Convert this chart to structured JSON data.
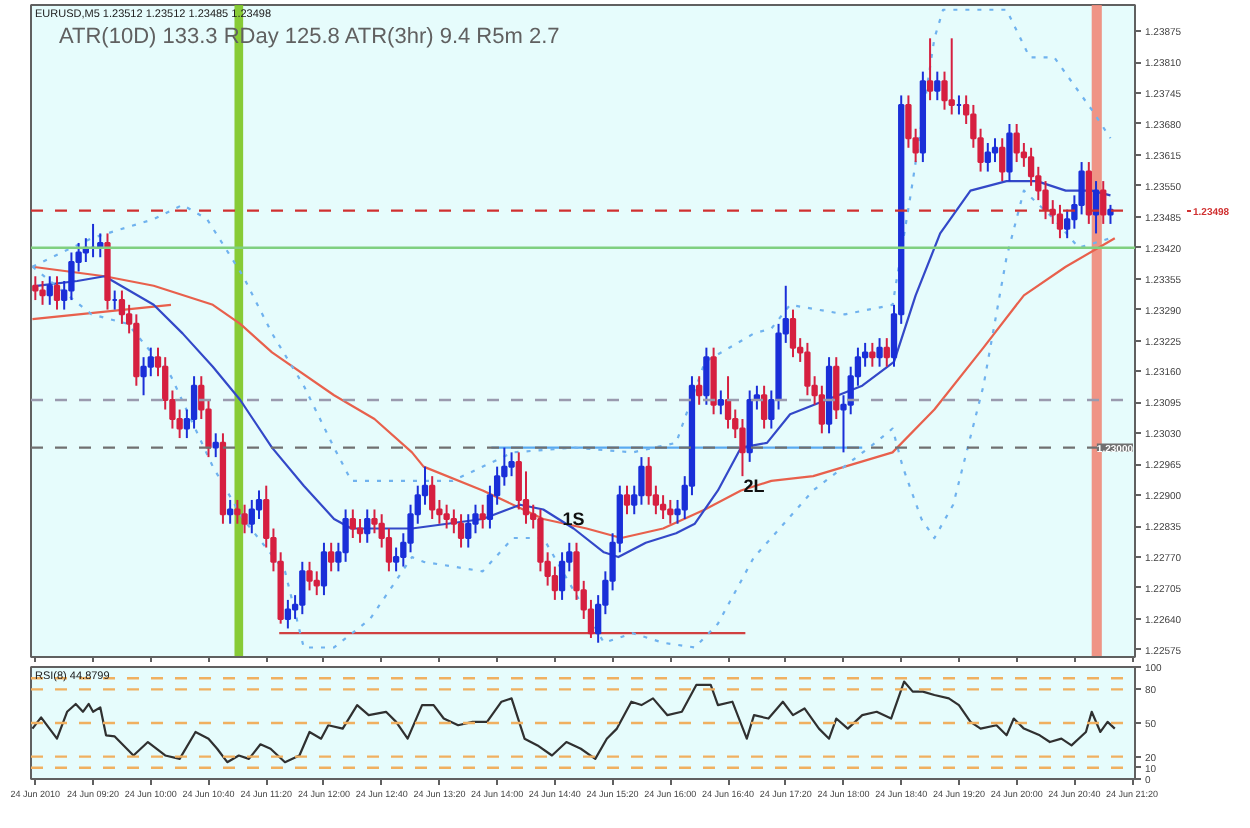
{
  "chart_data": [
    {
      "type": "candlestick",
      "title": "EURUSD,M5 1.23512 1.23512 1.23485 1.23498",
      "annotations": [
        "ATR(10D)  133.3   RDay  125.8   ATR(3hr)   9.4   R5m   2.7",
        {
          "text": "1S",
          "x": "2010-06-24T14:53",
          "y": 1.2285
        },
        {
          "text": "2L",
          "x": "2010-06-24T16:58",
          "y": 1.2292
        }
      ],
      "x": [
        "2010-06-24T08:40",
        "2010-06-24T08:45",
        "2010-06-24T08:50",
        "2010-06-24T08:55",
        "2010-06-24T09:00",
        "2010-06-24T09:05",
        "2010-06-24T09:10",
        "2010-06-24T09:15",
        "2010-06-24T09:20",
        "2010-06-24T09:25",
        "2010-06-24T09:30",
        "2010-06-24T09:35",
        "2010-06-24T09:40",
        "2010-06-24T09:45",
        "2010-06-24T09:50",
        "2010-06-24T09:55",
        "2010-06-24T10:00",
        "2010-06-24T10:05",
        "2010-06-24T10:10",
        "2010-06-24T10:15",
        "2010-06-24T10:20",
        "2010-06-24T10:25",
        "2010-06-24T10:30",
        "2010-06-24T10:35",
        "2010-06-24T10:40",
        "2010-06-24T10:45",
        "2010-06-24T10:50",
        "2010-06-24T10:55",
        "2010-06-24T11:00",
        "2010-06-24T11:05",
        "2010-06-24T11:10",
        "2010-06-24T11:15",
        "2010-06-24T11:20",
        "2010-06-24T11:25",
        "2010-06-24T11:30",
        "2010-06-24T11:35",
        "2010-06-24T11:40",
        "2010-06-24T11:45",
        "2010-06-24T11:50",
        "2010-06-24T11:55",
        "2010-06-24T12:00",
        "2010-06-24T12:05",
        "2010-06-24T12:10",
        "2010-06-24T12:15",
        "2010-06-24T12:20",
        "2010-06-24T12:25",
        "2010-06-24T12:30",
        "2010-06-24T12:35",
        "2010-06-24T12:40",
        "2010-06-24T12:45",
        "2010-06-24T12:50",
        "2010-06-24T12:55",
        "2010-06-24T13:00",
        "2010-06-24T13:05",
        "2010-06-24T13:10",
        "2010-06-24T13:15",
        "2010-06-24T13:20",
        "2010-06-24T13:25",
        "2010-06-24T13:30",
        "2010-06-24T13:35",
        "2010-06-24T13:40",
        "2010-06-24T13:45",
        "2010-06-24T13:50",
        "2010-06-24T13:55",
        "2010-06-24T14:00",
        "2010-06-24T14:05",
        "2010-06-24T14:10",
        "2010-06-24T14:15",
        "2010-06-24T14:20",
        "2010-06-24T14:25",
        "2010-06-24T14:30",
        "2010-06-24T14:35",
        "2010-06-24T14:40",
        "2010-06-24T14:45",
        "2010-06-24T14:50",
        "2010-06-24T14:55",
        "2010-06-24T15:00",
        "2010-06-24T15:05",
        "2010-06-24T15:10",
        "2010-06-24T15:15",
        "2010-06-24T15:20",
        "2010-06-24T15:25",
        "2010-06-24T15:30",
        "2010-06-24T15:35",
        "2010-06-24T15:40",
        "2010-06-24T15:45",
        "2010-06-24T15:50",
        "2010-06-24T15:55",
        "2010-06-24T16:00",
        "2010-06-24T16:05",
        "2010-06-24T16:10",
        "2010-06-24T16:15",
        "2010-06-24T16:20",
        "2010-06-24T16:25",
        "2010-06-24T16:30",
        "2010-06-24T16:35",
        "2010-06-24T16:40",
        "2010-06-24T16:45",
        "2010-06-24T16:50",
        "2010-06-24T16:55",
        "2010-06-24T17:00",
        "2010-06-24T17:05",
        "2010-06-24T17:10",
        "2010-06-24T17:15",
        "2010-06-24T17:20",
        "2010-06-24T17:25",
        "2010-06-24T17:30",
        "2010-06-24T17:35",
        "2010-06-24T17:40",
        "2010-06-24T17:45",
        "2010-06-24T17:50",
        "2010-06-24T17:55",
        "2010-06-24T18:00",
        "2010-06-24T18:05",
        "2010-06-24T18:10",
        "2010-06-24T18:15",
        "2010-06-24T18:20",
        "2010-06-24T18:25",
        "2010-06-24T18:30",
        "2010-06-24T18:35",
        "2010-06-24T18:40",
        "2010-06-24T18:45",
        "2010-06-24T18:50",
        "2010-06-24T18:55",
        "2010-06-24T19:00",
        "2010-06-24T19:05",
        "2010-06-24T19:10",
        "2010-06-24T19:15",
        "2010-06-24T19:20",
        "2010-06-24T19:25",
        "2010-06-24T19:30",
        "2010-06-24T19:35",
        "2010-06-24T19:40",
        "2010-06-24T19:45",
        "2010-06-24T19:50",
        "2010-06-24T19:55",
        "2010-06-24T20:00",
        "2010-06-24T20:05",
        "2010-06-24T20:10",
        "2010-06-24T20:15",
        "2010-06-24T20:20",
        "2010-06-24T20:25",
        "2010-06-24T20:30",
        "2010-06-24T20:35",
        "2010-06-24T20:40",
        "2010-06-24T20:45",
        "2010-06-24T20:50",
        "2010-06-24T20:55",
        "2010-06-24T21:00",
        "2010-06-24T21:05"
      ],
      "ohlc": [
        [
          1.2334,
          1.2336,
          1.2331,
          1.2333
        ],
        [
          1.2333,
          1.2335,
          1.233,
          1.2332
        ],
        [
          1.2332,
          1.2336,
          1.233,
          1.2334
        ],
        [
          1.2334,
          1.2336,
          1.2329,
          1.2331
        ],
        [
          1.2331,
          1.2335,
          1.2329,
          1.2333
        ],
        [
          1.2333,
          1.2341,
          1.2331,
          1.2339
        ],
        [
          1.2339,
          1.2343,
          1.2337,
          1.2341
        ],
        [
          1.2341,
          1.2344,
          1.2339,
          1.2342
        ],
        [
          1.2342,
          1.2347,
          1.234,
          1.2342
        ],
        [
          1.2342,
          1.2345,
          1.234,
          1.2343
        ],
        [
          1.2343,
          1.2345,
          1.2329,
          1.2331
        ],
        [
          1.2331,
          1.2333,
          1.2329,
          1.2331
        ],
        [
          1.2331,
          1.2333,
          1.2326,
          1.2328
        ],
        [
          1.2328,
          1.233,
          1.2324,
          1.2326
        ],
        [
          1.2326,
          1.2328,
          1.2313,
          1.2315
        ],
        [
          1.2315,
          1.2319,
          1.2311,
          1.2317
        ],
        [
          1.2317,
          1.2321,
          1.2315,
          1.2319
        ],
        [
          1.2319,
          1.2321,
          1.2315,
          1.2317
        ],
        [
          1.2317,
          1.2319,
          1.2308,
          1.231
        ],
        [
          1.231,
          1.2312,
          1.2304,
          1.2306
        ],
        [
          1.2306,
          1.2308,
          1.2302,
          1.2304
        ],
        [
          1.2304,
          1.2308,
          1.2302,
          1.2306
        ],
        [
          1.2306,
          1.2315,
          1.2304,
          1.2313
        ],
        [
          1.2313,
          1.2315,
          1.2306,
          1.2308
        ],
        [
          1.2308,
          1.231,
          1.2298,
          1.23
        ],
        [
          1.23,
          1.2303,
          1.2298,
          1.2301
        ],
        [
          1.2301,
          1.2303,
          1.2284,
          1.2286
        ],
        [
          1.2286,
          1.2289,
          1.2284,
          1.2287
        ],
        [
          1.2287,
          1.2289,
          1.2284,
          1.2286
        ],
        [
          1.2286,
          1.2288,
          1.2282,
          1.2284
        ],
        [
          1.2284,
          1.2289,
          1.2282,
          1.2287
        ],
        [
          1.2287,
          1.2291,
          1.2285,
          1.2289
        ],
        [
          1.2289,
          1.2292,
          1.2279,
          1.2281
        ],
        [
          1.2281,
          1.2283,
          1.2274,
          1.2276
        ],
        [
          1.2276,
          1.2278,
          1.2263,
          1.2264
        ],
        [
          1.2264,
          1.2268,
          1.2262,
          1.2266
        ],
        [
          1.2266,
          1.2269,
          1.2264,
          1.2267
        ],
        [
          1.2267,
          1.2276,
          1.2265,
          1.2274
        ],
        [
          1.2274,
          1.2276,
          1.227,
          1.2272
        ],
        [
          1.2272,
          1.2274,
          1.2269,
          1.2271
        ],
        [
          1.2271,
          1.228,
          1.2269,
          1.2278
        ],
        [
          1.2278,
          1.228,
          1.2274,
          1.2276
        ],
        [
          1.2276,
          1.228,
          1.2274,
          1.2278
        ],
        [
          1.2278,
          1.2287,
          1.2276,
          1.2285
        ],
        [
          1.2285,
          1.2287,
          1.2281,
          1.2283
        ],
        [
          1.2283,
          1.2285,
          1.228,
          1.2282
        ],
        [
          1.2282,
          1.2287,
          1.228,
          1.2285
        ],
        [
          1.2285,
          1.2287,
          1.2282,
          1.2284
        ],
        [
          1.2284,
          1.2286,
          1.2279,
          1.2281
        ],
        [
          1.2281,
          1.2283,
          1.2274,
          1.2276
        ],
        [
          1.2276,
          1.2279,
          1.2274,
          1.2277
        ],
        [
          1.2277,
          1.2282,
          1.2275,
          1.228
        ],
        [
          1.228,
          1.2288,
          1.2278,
          1.2286
        ],
        [
          1.2286,
          1.2292,
          1.2284,
          1.229
        ],
        [
          1.229,
          1.2296,
          1.2288,
          1.2292
        ],
        [
          1.2292,
          1.2294,
          1.2285,
          1.2287
        ],
        [
          1.2287,
          1.2289,
          1.2284,
          1.2286
        ],
        [
          1.2286,
          1.2288,
          1.2283,
          1.2285
        ],
        [
          1.2285,
          1.2287,
          1.2282,
          1.2284
        ],
        [
          1.2284,
          1.2286,
          1.2279,
          1.2281
        ],
        [
          1.2281,
          1.2286,
          1.2279,
          1.2284
        ],
        [
          1.2284,
          1.2288,
          1.2282,
          1.2286
        ],
        [
          1.2286,
          1.2288,
          1.2283,
          1.2285
        ],
        [
          1.2285,
          1.2292,
          1.2283,
          1.229
        ],
        [
          1.229,
          1.2296,
          1.2288,
          1.2294
        ],
        [
          1.2294,
          1.23,
          1.2292,
          1.2296
        ],
        [
          1.2296,
          1.2299,
          1.2294,
          1.2297
        ],
        [
          1.2297,
          1.2299,
          1.2287,
          1.2289
        ],
        [
          1.2289,
          1.2295,
          1.2284,
          1.2286
        ],
        [
          1.2286,
          1.2288,
          1.2283,
          1.2285
        ],
        [
          1.2285,
          1.2287,
          1.2274,
          1.2276
        ],
        [
          1.2276,
          1.2278,
          1.2271,
          1.2273
        ],
        [
          1.2273,
          1.2275,
          1.2268,
          1.227
        ],
        [
          1.227,
          1.2278,
          1.2268,
          1.2276
        ],
        [
          1.2276,
          1.228,
          1.2274,
          1.2278
        ],
        [
          1.2278,
          1.228,
          1.2268,
          1.227
        ],
        [
          1.227,
          1.2272,
          1.2264,
          1.2266
        ],
        [
          1.2266,
          1.2268,
          1.226,
          1.2261
        ],
        [
          1.2261,
          1.2269,
          1.2259,
          1.2267
        ],
        [
          1.2267,
          1.2274,
          1.2265,
          1.2272
        ],
        [
          1.2272,
          1.2282,
          1.227,
          1.228
        ],
        [
          1.228,
          1.2292,
          1.2278,
          1.229
        ],
        [
          1.229,
          1.2292,
          1.2286,
          1.2288
        ],
        [
          1.2288,
          1.2292,
          1.2286,
          1.229
        ],
        [
          1.229,
          1.2298,
          1.2288,
          1.2296
        ],
        [
          1.2296,
          1.2298,
          1.2288,
          1.229
        ],
        [
          1.229,
          1.2292,
          1.2286,
          1.2288
        ],
        [
          1.2288,
          1.229,
          1.2285,
          1.2287
        ],
        [
          1.2287,
          1.2289,
          1.2284,
          1.2286
        ],
        [
          1.2286,
          1.2289,
          1.2284,
          1.2287
        ],
        [
          1.2287,
          1.2294,
          1.2285,
          1.2292
        ],
        [
          1.2292,
          1.2315,
          1.229,
          1.2313
        ],
        [
          1.2313,
          1.2315,
          1.2309,
          1.2311
        ],
        [
          1.2311,
          1.2321,
          1.2309,
          1.2319
        ],
        [
          1.2319,
          1.2321,
          1.2307,
          1.2309
        ],
        [
          1.2309,
          1.2312,
          1.2307,
          1.231
        ],
        [
          1.231,
          1.2315,
          1.2304,
          1.2306
        ],
        [
          1.2306,
          1.2308,
          1.2302,
          1.2304
        ],
        [
          1.2304,
          1.2306,
          1.2294,
          1.2299
        ],
        [
          1.2299,
          1.2312,
          1.2297,
          1.231
        ],
        [
          1.231,
          1.2313,
          1.2308,
          1.2311
        ],
        [
          1.2311,
          1.2313,
          1.2304,
          1.2306
        ],
        [
          1.2306,
          1.2312,
          1.2304,
          1.231
        ],
        [
          1.231,
          1.2326,
          1.2308,
          1.2324
        ],
        [
          1.2324,
          1.2334,
          1.2322,
          1.2327
        ],
        [
          1.2327,
          1.2329,
          1.2319,
          1.2321
        ],
        [
          1.2321,
          1.2323,
          1.2318,
          1.232
        ],
        [
          1.232,
          1.2322,
          1.2311,
          1.2313
        ],
        [
          1.2313,
          1.2315,
          1.2309,
          1.2311
        ],
        [
          1.2311,
          1.2313,
          1.2303,
          1.2305
        ],
        [
          1.2305,
          1.2319,
          1.2303,
          1.2317
        ],
        [
          1.2317,
          1.2319,
          1.2306,
          1.2308
        ],
        [
          1.2308,
          1.2311,
          1.2299,
          1.2309
        ],
        [
          1.2309,
          1.2317,
          1.2307,
          1.2315
        ],
        [
          1.2315,
          1.2321,
          1.2313,
          1.2319
        ],
        [
          1.2319,
          1.2322,
          1.2317,
          1.232
        ],
        [
          1.232,
          1.2322,
          1.2317,
          1.2319
        ],
        [
          1.2319,
          1.2323,
          1.2317,
          1.2321
        ],
        [
          1.2321,
          1.2323,
          1.2317,
          1.2319
        ],
        [
          1.2319,
          1.233,
          1.2317,
          1.2328
        ],
        [
          1.2328,
          1.2374,
          1.2326,
          1.2372
        ],
        [
          1.2372,
          1.2374,
          1.2363,
          1.2365
        ],
        [
          1.2365,
          1.2367,
          1.236,
          1.2362
        ],
        [
          1.2362,
          1.2379,
          1.236,
          1.2377
        ],
        [
          1.2377,
          1.2386,
          1.2373,
          1.2375
        ],
        [
          1.2375,
          1.2379,
          1.2373,
          1.2377
        ],
        [
          1.2377,
          1.2379,
          1.2371,
          1.2373
        ],
        [
          1.2373,
          1.2386,
          1.237,
          1.2372
        ],
        [
          1.2372,
          1.2374,
          1.237,
          1.2372
        ],
        [
          1.2372,
          1.2374,
          1.2368,
          1.237
        ],
        [
          1.237,
          1.2372,
          1.2363,
          1.2365
        ],
        [
          1.2365,
          1.2367,
          1.2358,
          1.236
        ],
        [
          1.236,
          1.2364,
          1.2358,
          1.2362
        ],
        [
          1.2362,
          1.2365,
          1.236,
          1.2363
        ],
        [
          1.2363,
          1.2365,
          1.2356,
          1.2358
        ],
        [
          1.2358,
          1.2368,
          1.2356,
          1.2366
        ],
        [
          1.2366,
          1.2368,
          1.236,
          1.2362
        ],
        [
          1.2362,
          1.2364,
          1.2359,
          1.2361
        ],
        [
          1.2361,
          1.2363,
          1.2355,
          1.2357
        ],
        [
          1.2357,
          1.2359,
          1.2352,
          1.2354
        ],
        [
          1.2354,
          1.2356,
          1.2348,
          1.235
        ],
        [
          1.235,
          1.2352,
          1.2347,
          1.2349
        ],
        [
          1.2349,
          1.2351,
          1.2344,
          1.2346
        ],
        [
          1.2346,
          1.235,
          1.2344,
          1.2348
        ],
        [
          1.2348,
          1.2353,
          1.2346,
          1.2351
        ],
        [
          1.2351,
          1.236,
          1.2349,
          1.2358
        ],
        [
          1.2358,
          1.236,
          1.2347,
          1.2349
        ],
        [
          1.2349,
          1.2356,
          1.2345,
          1.2354
        ],
        [
          1.2354,
          1.2356,
          1.2347,
          1.2349
        ],
        [
          1.2349,
          1.2351,
          1.2347,
          1.235
        ]
      ],
      "series": [
        {
          "type": "line",
          "color": "#e8604c",
          "line_style": "solid",
          "x": [
            "2010-06-24T08:38",
            "2010-06-24T10:14"
          ],
          "values": [
            1.2327,
            1.233
          ]
        },
        {
          "type": "line",
          "color": "#d04040",
          "line_style": "solid",
          "x": [
            "2010-06-24T11:29",
            "2010-06-24T16:52"
          ],
          "values": [
            1.2261,
            1.2261
          ]
        },
        {
          "type": "line",
          "color": "#5aaaf0",
          "line_style": "solid",
          "x": [
            "2010-06-24T13:56",
            "2010-06-24T18:13"
          ],
          "values": [
            1.23,
            1.23
          ]
        },
        {
          "type": "line",
          "color": "#e8604c",
          "line_style": "solid",
          "x": [
            "2010-06-24T08:38",
            "2010-06-24T09:28",
            "2010-06-24T10:02",
            "2010-06-24T10:43",
            "2010-06-24T11:02",
            "2010-06-24T11:24",
            "2010-06-24T12:07",
            "2010-06-24T12:35",
            "2010-06-24T13:01",
            "2010-06-24T13:09",
            "2010-06-24T13:50",
            "2010-06-24T14:32",
            "2010-06-24T15:02",
            "2010-06-24T15:26",
            "2010-06-24T15:55",
            "2010-06-24T16:24",
            "2010-06-24T16:49",
            "2010-06-24T17:10",
            "2010-06-24T17:39",
            "2010-06-24T18:34",
            "2010-06-24T19:03",
            "2010-06-24T19:37",
            "2010-06-24T20:05",
            "2010-06-24T20:34",
            "2010-06-24T21:08"
          ],
          "values": [
            1.2338,
            1.2336,
            1.2334,
            1.233,
            1.2326,
            1.232,
            1.2311,
            1.2306,
            1.2299,
            1.2296,
            1.2291,
            1.2285,
            1.2283,
            1.2281,
            1.2283,
            1.2287,
            1.2291,
            1.2293,
            1.2294,
            1.2299,
            1.2308,
            1.2321,
            1.2332,
            1.2338,
            1.2344
          ]
        },
        {
          "type": "line",
          "color": "#3348c8",
          "line_style": "solid",
          "x": [
            "2010-06-24T08:41",
            "2010-06-24T09:09",
            "2010-06-24T09:28",
            "2010-06-24T10:02",
            "2010-06-24T10:22",
            "2010-06-24T10:43",
            "2010-06-24T11:02",
            "2010-06-24T11:24",
            "2010-06-24T11:46",
            "2010-06-24T12:07",
            "2010-06-24T12:19",
            "2010-06-24T13:01",
            "2010-06-24T13:50",
            "2010-06-24T14:16",
            "2010-06-24T14:32",
            "2010-06-24T14:53",
            "2010-06-24T15:14",
            "2010-06-24T15:24",
            "2010-06-24T15:43",
            "2010-06-24T16:04",
            "2010-06-24T16:17",
            "2010-06-24T16:33",
            "2010-06-24T16:49",
            "2010-06-24T17:07",
            "2010-06-24T17:23",
            "2010-06-24T17:48",
            "2010-06-24T18:13",
            "2010-06-24T18:35",
            "2010-06-24T18:50",
            "2010-06-24T19:07",
            "2010-06-24T19:28",
            "2010-06-24T19:53",
            "2010-06-24T20:14",
            "2010-06-24T20:34",
            "2010-06-24T20:52",
            "2010-06-24T21:05"
          ],
          "values": [
            1.2334,
            1.2335,
            1.2336,
            1.233,
            1.2324,
            1.2317,
            1.231,
            1.23,
            1.2292,
            1.2285,
            1.2283,
            1.2283,
            1.2285,
            1.2288,
            1.2287,
            1.2283,
            1.2278,
            1.2277,
            1.228,
            1.2282,
            1.2284,
            1.2291,
            1.23,
            1.2301,
            1.2307,
            1.231,
            1.2313,
            1.2318,
            1.2332,
            1.2345,
            1.2354,
            1.2356,
            1.2356,
            1.2354,
            1.2354,
            1.2353
          ]
        },
        {
          "type": "line",
          "color": "#6fb2ee",
          "line_style": "dotted",
          "x": [
            "2010-06-24T08:38",
            "2010-06-24T09:19",
            "2010-06-24T10:02",
            "2010-06-24T10:22",
            "2010-06-24T10:39",
            "2010-06-24T11:04",
            "2010-06-24T11:24",
            "2010-06-24T11:46",
            "2010-06-24T12:07",
            "2010-06-24T12:19",
            "2010-06-24T13:01",
            "2010-06-24T13:29",
            "2010-06-24T14:11",
            "2010-06-24T14:53",
            "2010-06-24T15:34",
            "2010-06-24T16:04",
            "2010-06-24T16:24",
            "2010-06-24T16:58",
            "2010-06-24T17:10",
            "2010-06-24T17:23",
            "2010-06-24T18:01",
            "2010-06-24T18:34",
            "2010-06-24T18:47",
            "2010-06-24T19:03",
            "2010-06-24T19:09",
            "2010-06-24T19:53",
            "2010-06-24T20:09",
            "2010-06-24T20:26",
            "2010-06-24T20:52",
            "2010-06-24T21:05"
          ],
          "values": [
            1.2338,
            1.2344,
            1.2348,
            1.2351,
            1.2348,
            1.2336,
            1.2324,
            1.2313,
            1.23,
            1.2293,
            1.2293,
            1.2293,
            1.2299,
            1.23,
            1.2299,
            1.2301,
            1.2318,
            1.2324,
            1.2325,
            1.233,
            1.2328,
            1.233,
            1.2354,
            1.2386,
            1.2392,
            1.2392,
            1.2382,
            1.2382,
            1.2371,
            1.2365
          ]
        },
        {
          "type": "line",
          "color": "#6fb2ee",
          "line_style": "dotted",
          "x": [
            "2010-06-24T08:38",
            "2010-06-24T09:19",
            "2010-06-24T09:44",
            "2010-06-24T10:14",
            "2010-06-24T10:43",
            "2010-06-24T11:04",
            "2010-06-24T11:33",
            "2010-06-24T11:46",
            "2010-06-24T12:07",
            "2010-06-24T12:32",
            "2010-06-24T13:01",
            "2010-06-24T13:09",
            "2010-06-24T13:50",
            "2010-06-24T14:11",
            "2010-06-24T14:32",
            "2010-06-24T15:14",
            "2010-06-24T15:34",
            "2010-06-24T15:55",
            "2010-06-24T16:17",
            "2010-06-24T16:33",
            "2010-06-24T16:58",
            "2010-06-24T17:10",
            "2010-06-24T17:39",
            "2010-06-24T18:22",
            "2010-06-24T18:34",
            "2010-06-24T18:41",
            "2010-06-24T18:54",
            "2010-06-24T19:03",
            "2010-06-24T19:16",
            "2010-06-24T19:37",
            "2010-06-24T19:53",
            "2010-06-24T20:05",
            "2010-06-24T20:26",
            "2010-06-24T20:43",
            "2010-06-24T21:05"
          ],
          "values": [
            1.2338,
            1.2328,
            1.2326,
            1.2315,
            1.2296,
            1.2285,
            1.2274,
            1.2258,
            1.2258,
            1.2264,
            1.2277,
            1.2276,
            1.2274,
            1.2281,
            1.2281,
            1.2259,
            1.2261,
            1.2259,
            1.2258,
            1.2263,
            1.2277,
            1.2281,
            1.2291,
            1.2301,
            1.2304,
            1.2296,
            1.2285,
            1.2281,
            1.2288,
            1.2313,
            1.234,
            1.2354,
            1.2348,
            1.2342,
            1.2344
          ]
        }
      ],
      "xlim": [
        "2010-06-24T08:37",
        "2010-06-24T21:22"
      ],
      "ylim": [
        1.2256,
        1.2393
      ],
      "xticks": [
        {
          "value": "2010-06-24T08:40",
          "label": null
        },
        {
          "value": "2010-06-24T09:20",
          "label": null
        },
        {
          "value": "2010-06-24T10:00",
          "label": null
        },
        {
          "value": "2010-06-24T10:40",
          "label": null
        },
        {
          "value": "2010-06-24T11:20",
          "label": null
        },
        {
          "value": "2010-06-24T12:00",
          "label": null
        },
        {
          "value": "2010-06-24T12:40",
          "label": null
        },
        {
          "value": "2010-06-24T13:20",
          "label": null
        },
        {
          "value": "2010-06-24T14:00",
          "label": null
        },
        {
          "value": "2010-06-24T14:40",
          "label": null
        },
        {
          "value": "2010-06-24T15:20",
          "label": null
        },
        {
          "value": "2010-06-24T16:00",
          "label": null
        },
        {
          "value": "2010-06-24T16:40",
          "label": null
        },
        {
          "value": "2010-06-24T17:20",
          "label": null
        },
        {
          "value": "2010-06-24T18:00",
          "label": null
        },
        {
          "value": "2010-06-24T18:40",
          "label": null
        },
        {
          "value": "2010-06-24T19:20",
          "label": null
        },
        {
          "value": "2010-06-24T20:00",
          "label": null
        },
        {
          "value": "2010-06-24T20:40",
          "label": null
        },
        {
          "value": "2010-06-24T21:20",
          "label": null
        }
      ],
      "yticks": [
        1.22575,
        {
          "value": 1.2264,
          "label": "1.22640"
        },
        1.22705,
        {
          "value": 1.2277,
          "label": "1.22770"
        },
        1.22835,
        {
          "value": 1.229,
          "label": "1.22900"
        },
        1.22965,
        {
          "value": 1.2303,
          "label": "1.23030"
        },
        1.23095,
        {
          "value": 1.2316,
          "label": "1.23160"
        },
        1.23225,
        {
          "value": 1.2329,
          "label": "1.23290"
        },
        1.23355,
        {
          "value": 1.2342,
          "label": "1.23420"
        },
        1.23485,
        {
          "value": 1.2355,
          "label": "1.23550"
        },
        1.23615,
        {
          "value": 1.2368,
          "label": "1.23680"
        },
        1.23745,
        {
          "value": 1.2381,
          "label": "1.23810"
        },
        1.23875
      ],
      "tick_labels": "y",
      "grid": false,
      "ref_lines": [
        {
          "axis": "y",
          "value": 1.23498,
          "label": "1.23498",
          "color": "#d03030",
          "line_style": "dashed"
        },
        {
          "axis": "y",
          "value": 1.2342,
          "color": "#80d080",
          "line_style": "solid"
        },
        {
          "axis": "y",
          "value": 1.231,
          "color": "#9a9aae",
          "line_style": "dashed"
        },
        {
          "axis": "y",
          "value": 1.23,
          "label": "1.23000",
          "color": "#707070",
          "line_style": "dashed"
        }
      ],
      "bands": [
        {
          "axis": "x",
          "from": "2010-06-24T10:58",
          "to": "2010-06-24T11:04",
          "color": "#7cc520"
        },
        {
          "axis": "x",
          "from": "2010-06-24T20:52",
          "to": "2010-06-24T20:59",
          "color": "#f08878"
        }
      ]
    },
    {
      "type": "line",
      "title": "RSI(8) 44.8799",
      "series": [
        {
          "color": "#303030",
          "x": [
            "2010-06-24T08:38",
            "2010-06-24T08:44",
            "2010-06-24T08:55",
            "2010-06-24T09:02",
            "2010-06-24T09:08",
            "2010-06-24T09:13",
            "2010-06-24T09:17",
            "2010-06-24T09:20",
            "2010-06-24T09:25",
            "2010-06-24T09:29",
            "2010-06-24T09:35",
            "2010-06-24T09:48",
            "2010-06-24T09:58",
            "2010-06-24T10:10",
            "2010-06-24T10:20",
            "2010-06-24T10:31",
            "2010-06-24T10:40",
            "2010-06-24T10:46",
            "2010-06-24T10:53",
            "2010-06-24T11:01",
            "2010-06-24T11:08",
            "2010-06-24T11:16",
            "2010-06-24T11:23",
            "2010-06-24T11:33",
            "2010-06-24T11:43",
            "2010-06-24T11:50",
            "2010-06-24T11:58",
            "2010-06-24T12:03",
            "2010-06-24T12:13",
            "2010-06-24T12:23",
            "2010-06-24T12:31",
            "2010-06-24T12:43",
            "2010-06-24T12:50",
            "2010-06-24T12:58",
            "2010-06-24T13:08",
            "2010-06-24T13:16",
            "2010-06-24T13:23",
            "2010-06-24T13:33",
            "2010-06-24T13:43",
            "2010-06-24T13:53",
            "2010-06-24T14:03",
            "2010-06-24T14:10",
            "2010-06-24T14:19",
            "2010-06-24T14:28",
            "2010-06-24T14:38",
            "2010-06-24T14:48",
            "2010-06-24T14:58",
            "2010-06-24T15:08",
            "2010-06-24T15:16",
            "2010-06-24T15:23",
            "2010-06-24T15:33",
            "2010-06-24T15:40",
            "2010-06-24T15:48",
            "2010-06-24T15:58",
            "2010-06-24T16:08",
            "2010-06-24T16:18",
            "2010-06-24T16:28",
            "2010-06-24T16:33",
            "2010-06-24T16:43",
            "2010-06-24T16:53",
            "2010-06-24T16:58",
            "2010-06-24T17:08",
            "2010-06-24T17:18",
            "2010-06-24T17:25",
            "2010-06-24T17:33",
            "2010-06-24T17:43",
            "2010-06-24T17:50",
            "2010-06-24T17:55",
            "2010-06-24T18:03",
            "2010-06-24T18:13",
            "2010-06-24T18:23",
            "2010-06-24T18:33",
            "2010-06-24T18:42",
            "2010-06-24T18:48",
            "2010-06-24T18:55",
            "2010-06-24T19:03",
            "2010-06-24T19:13",
            "2010-06-24T19:20",
            "2010-06-24T19:28",
            "2010-06-24T19:35",
            "2010-06-24T19:46",
            "2010-06-24T19:53",
            "2010-06-24T19:58",
            "2010-06-24T20:05",
            "2010-06-24T20:16",
            "2010-06-24T20:23",
            "2010-06-24T20:31",
            "2010-06-24T20:38",
            "2010-06-24T20:48",
            "2010-06-24T20:52",
            "2010-06-24T20:58",
            "2010-06-24T21:03",
            "2010-06-24T21:08"
          ],
          "values": [
            45,
            55,
            36,
            60,
            67,
            60,
            67,
            60,
            64,
            39,
            38,
            21,
            33,
            21,
            18,
            42,
            36,
            27,
            15,
            21,
            18,
            31,
            27,
            15,
            21,
            42,
            36,
            48,
            45,
            66,
            57,
            60,
            51,
            36,
            66,
            66,
            54,
            48,
            51,
            51,
            69,
            72,
            36,
            30,
            21,
            33,
            27,
            18,
            36,
            45,
            69,
            66,
            72,
            57,
            60,
            84,
            84,
            66,
            69,
            36,
            57,
            54,
            69,
            57,
            63,
            45,
            36,
            54,
            45,
            57,
            60,
            54,
            87,
            78,
            78,
            75,
            72,
            66,
            51,
            45,
            48,
            39,
            54,
            45,
            39,
            33,
            36,
            30,
            42,
            60,
            42,
            51,
            45
          ]
        }
      ],
      "xlim": [
        "2010-06-24T08:37",
        "2010-06-24T21:22"
      ],
      "ylim": [
        0,
        100
      ],
      "xticks": [
        {
          "value": "2010-06-24T08:40",
          "label": "24 Jun 2010"
        },
        {
          "value": "2010-06-24T09:20",
          "label": "24 Jun 09:20"
        },
        {
          "value": "2010-06-24T10:00",
          "label": "24 Jun 10:00"
        },
        {
          "value": "2010-06-24T10:40",
          "label": "24 Jun 10:40"
        },
        {
          "value": "2010-06-24T11:20",
          "label": "24 Jun 11:20"
        },
        {
          "value": "2010-06-24T12:00",
          "label": "24 Jun 12:00"
        },
        {
          "value": "2010-06-24T12:40",
          "label": "24 Jun 12:40"
        },
        {
          "value": "2010-06-24T13:20",
          "label": "24 Jun 13:20"
        },
        {
          "value": "2010-06-24T14:00",
          "label": "24 Jun 14:00"
        },
        {
          "value": "2010-06-24T14:40",
          "label": "24 Jun 14:40"
        },
        {
          "value": "2010-06-24T15:20",
          "label": "24 Jun 15:20"
        },
        {
          "value": "2010-06-24T16:00",
          "label": "24 Jun 16:00"
        },
        {
          "value": "2010-06-24T16:40",
          "label": "24 Jun 16:40"
        },
        {
          "value": "2010-06-24T17:20",
          "label": "24 Jun 17:20"
        },
        {
          "value": "2010-06-24T18:00",
          "label": "24 Jun 18:00"
        },
        {
          "value": "2010-06-24T18:40",
          "label": "24 Jun 18:40"
        },
        {
          "value": "2010-06-24T19:20",
          "label": "24 Jun 19:20"
        },
        {
          "value": "2010-06-24T20:00",
          "label": "24 Jun 20:00"
        },
        {
          "value": "2010-06-24T20:40",
          "label": "24 Jun 20:40"
        },
        {
          "value": "2010-06-24T21:20",
          "label": "24 Jun 21:20"
        }
      ],
      "yticks": [
        100,
        80,
        50,
        20,
        10,
        0
      ],
      "grid": false,
      "ref_lines": [
        {
          "axis": "y",
          "value": 90,
          "color": "#f0b060",
          "line_style": "dashed"
        },
        {
          "axis": "y",
          "value": 80,
          "color": "#f0b060",
          "line_style": "dashed"
        },
        {
          "axis": "y",
          "value": 50,
          "color": "#f0b060",
          "line_style": "dashed"
        },
        {
          "axis": "y",
          "value": 20,
          "color": "#f0b060",
          "line_style": "dashed"
        },
        {
          "axis": "y",
          "value": 10,
          "color": "#f0b060",
          "line_style": "dashed"
        }
      ]
    }
  ]
}
